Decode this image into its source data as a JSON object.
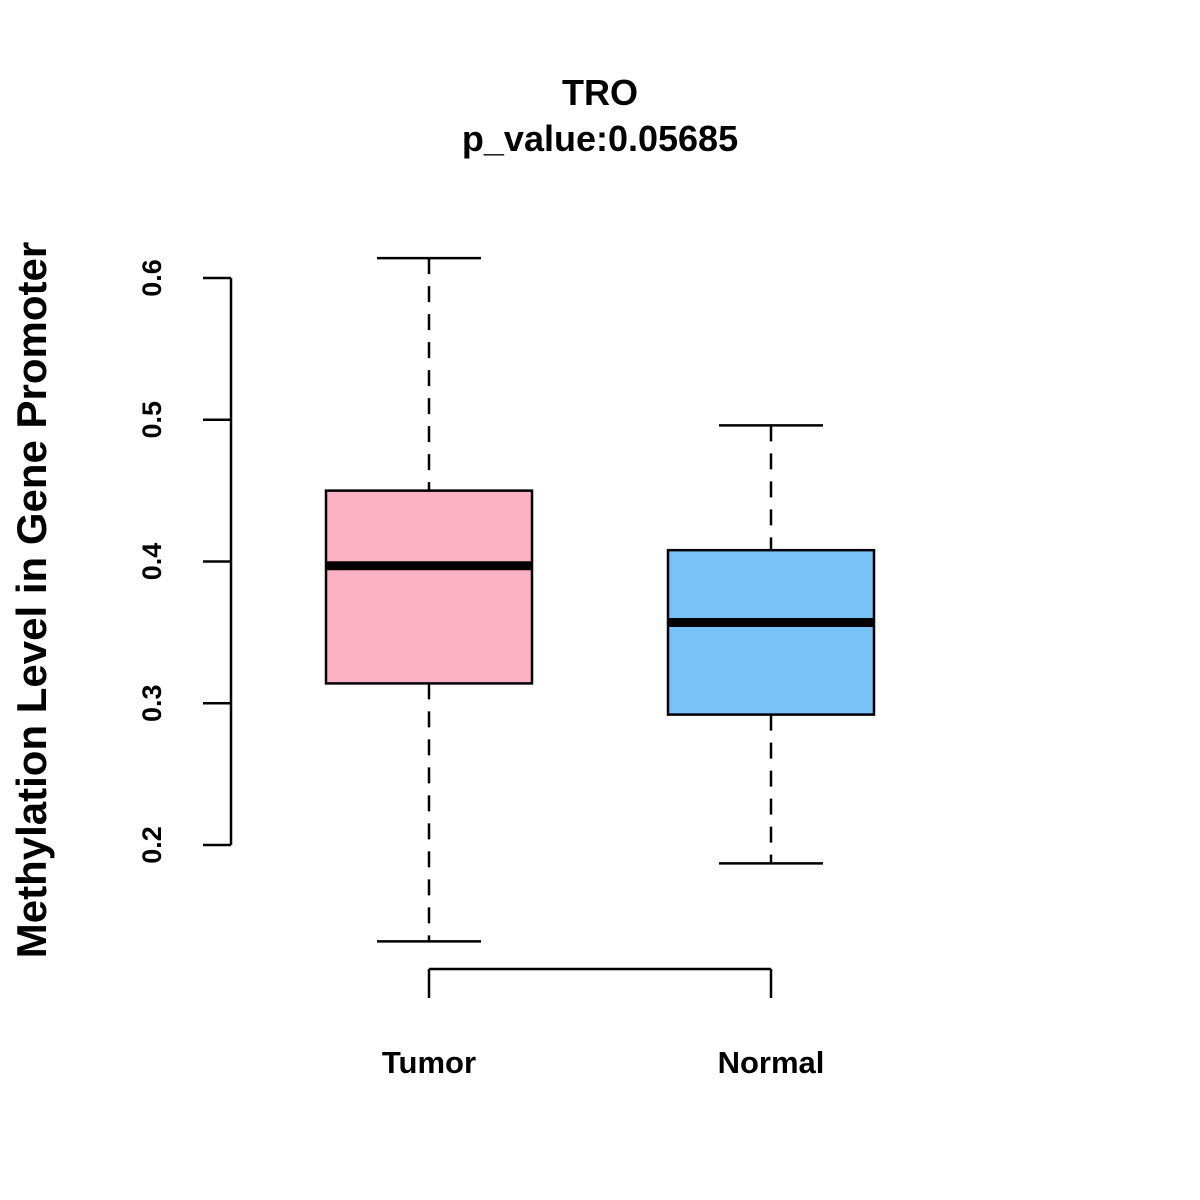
{
  "chart_data": {
    "type": "boxplot",
    "title": "TRO",
    "subtitle": "p_value:0.05685",
    "xlabel": "",
    "ylabel": "Methylation Level in Gene Promoter",
    "yticks": [
      0.2,
      0.3,
      0.4,
      0.5,
      0.6
    ],
    "ytick_labels": [
      "0.2",
      "0.3",
      "0.4",
      "0.5",
      "0.6"
    ],
    "categories": [
      "Tumor",
      "Normal"
    ],
    "series": [
      {
        "name": "Tumor",
        "color": "#FDB1C4",
        "whisker_low": 0.132,
        "q1": 0.314,
        "median": 0.397,
        "q3": 0.45,
        "whisker_high": 0.614
      },
      {
        "name": "Normal",
        "color": "#78C2F9",
        "whisker_low": 0.187,
        "q1": 0.292,
        "median": 0.357,
        "q3": 0.408,
        "whisker_high": 0.496
      }
    ],
    "grid": false
  }
}
